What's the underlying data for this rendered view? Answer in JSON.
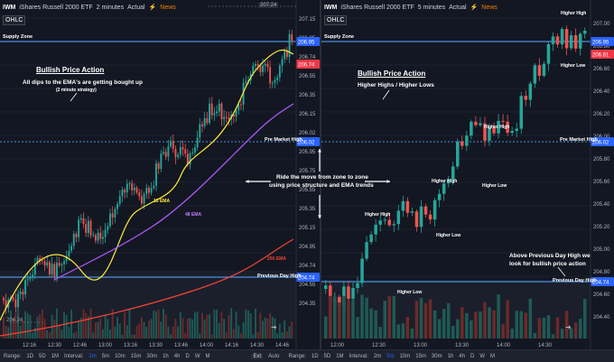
{
  "left": {
    "symbol": "IWM",
    "name": "iShares Russell 2000 ETF",
    "interval": "2 minutes",
    "mode": "Actual",
    "news": "News",
    "ohlc": "OHLC",
    "supply_zone": "Supply Zone",
    "pre_market_high": "Pre Market High",
    "prev_day_high": "Previous Day High",
    "high_label": "207.24",
    "low_label": "204.34",
    "title_main": "Bullish Price Action",
    "sub1": "All dips to the EMA's are getting bought up",
    "sub2": "(2 minute strategy)",
    "ema13": "13 EMA",
    "ema48": "48 EMA",
    "ema200": "200 EMA",
    "axis": [
      "207.15",
      "206.95",
      "206.74",
      "206.55",
      "206.35",
      "206.15",
      "206.02",
      "205.95",
      "205.75",
      "205.55",
      "205.35",
      "205.15",
      "204.95",
      "204.74",
      "204.55",
      "204.35"
    ],
    "tags": {
      "supply": "206.95",
      "last": "206.74",
      "pmh": "206.02",
      "pdh": "204.74"
    },
    "times": [
      "12:16",
      "12:30",
      "12:46",
      "13:00",
      "13:16",
      "13:30",
      "13:46",
      "14:00",
      "14:16",
      "14:30",
      "14:46"
    ]
  },
  "right": {
    "symbol": "IWM",
    "name": "iShares Russell 2000 ETF",
    "interval": "5 minutes",
    "mode": "Actual",
    "news": "News",
    "ohlc": "OHLC",
    "supply_zone": "Supply Zone",
    "pre_market_high": "Pre Market High",
    "prev_day_high": "Previous Day High",
    "title_main": "Bullish Price Action",
    "sub1": "Higher Highs / Higher Lows",
    "hh": "Higher High",
    "hl": "Higher Low",
    "note1": "Above Previous Day High we",
    "note2": "look for bullish price action",
    "axis": [
      "207.00",
      "206.80",
      "206.60",
      "206.40",
      "206.20",
      "206.00",
      "205.80",
      "205.60",
      "205.40",
      "205.20",
      "205.00",
      "204.80",
      "204.60",
      "204.40"
    ],
    "tags": {
      "supply": "206.95",
      "last": "206.81",
      "pmh": "206.02",
      "pdh": "204.74"
    },
    "times": [
      "12:00",
      "12:30",
      "13:00",
      "13:30",
      "14:00",
      "14:30"
    ]
  },
  "center": {
    "line1": "Ride the move from zone to zone",
    "line2": "using price structure and EMA trends"
  },
  "bottom": {
    "range": "Range:",
    "ranges": [
      "1D",
      "5D",
      "1M"
    ],
    "interval": "Interval:",
    "intervals": [
      "2m",
      "5m",
      "10m",
      "15m",
      "30m",
      "1h",
      "4h",
      "D",
      "W",
      "M"
    ],
    "ext": "Ext",
    "auto": "Auto",
    "right_ranges": [
      "1D",
      "5D",
      "1M"
    ],
    "right_intervals": [
      "2m",
      "5m",
      "10m",
      "15m",
      "30m",
      "1h",
      "4h",
      "D",
      "W",
      "M"
    ]
  },
  "colors": {
    "up": "#26a69a",
    "down": "#ef5350",
    "tag_blue": "#2962ff",
    "tag_red": "#f23645",
    "ema13": "#ffeb3b",
    "ema48": "#b05bff",
    "ema200": "#f44336"
  }
}
